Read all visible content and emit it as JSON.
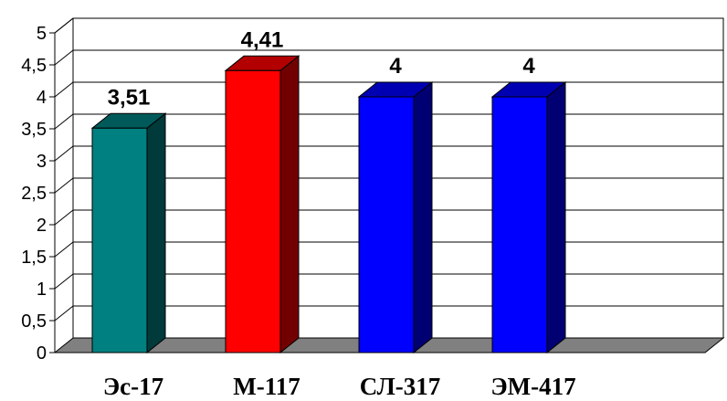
{
  "chart_data": {
    "type": "bar",
    "title": "",
    "xlabel": "",
    "ylabel": "",
    "categories": [
      "Эс-17",
      "М-117",
      "СЛ-317",
      "ЭМ-417"
    ],
    "values": [
      3.51,
      4.41,
      4,
      4
    ],
    "data_labels": [
      "3,51",
      "4,41",
      "4",
      "4"
    ],
    "bar_colors": [
      "#008080",
      "#FF0000",
      "#0000FF",
      "#0000FF"
    ],
    "ylim": [
      0,
      5
    ],
    "yticks": [
      0,
      0.5,
      1,
      1.5,
      2,
      2.5,
      3,
      3.5,
      4,
      4.5,
      5
    ],
    "ytick_labels": [
      "0",
      "0,5",
      "1",
      "1,5",
      "2",
      "2,5",
      "3",
      "3,5",
      "4",
      "4,5",
      "5"
    ],
    "grid": true,
    "style": "3d-bar",
    "floor_color": "#808080"
  }
}
